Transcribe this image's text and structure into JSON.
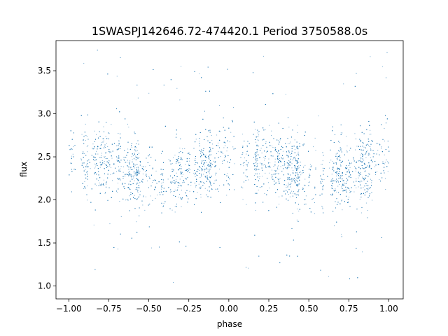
{
  "chart_data": {
    "type": "scatter",
    "title": "1SWASPJ142646.72-474420.1 Period 3750588.0s",
    "xlabel": "phase",
    "ylabel": "flux",
    "xlim": [
      -1.08,
      1.09
    ],
    "ylim": [
      0.85,
      3.85
    ],
    "x_ticks": [
      -1.0,
      -0.75,
      -0.5,
      -0.25,
      0.0,
      0.25,
      0.5,
      0.75,
      1.0
    ],
    "x_tick_labels": [
      "−1.00",
      "−0.75",
      "−0.50",
      "−0.25",
      "0.00",
      "0.25",
      "0.50",
      "0.75",
      "1.00"
    ],
    "y_ticks": [
      1.0,
      1.5,
      2.0,
      2.5,
      3.0,
      3.5
    ],
    "y_tick_labels": [
      "1.0",
      "1.5",
      "2.0",
      "2.5",
      "3.0",
      "3.5"
    ],
    "grid": false,
    "marker_color": "#1f77b4",
    "phase_folded": true,
    "profile_phase": [
      0.0,
      0.1,
      0.2,
      0.3,
      0.4,
      0.5,
      0.6,
      0.7,
      0.8,
      0.9
    ],
    "profile_median_flux": [
      2.5,
      2.45,
      2.45,
      2.4,
      2.3,
      2.28,
      2.2,
      2.3,
      2.35,
      2.45
    ],
    "flux_spread_core": [
      2.0,
      3.0
    ],
    "flux_outlier_range": [
      1.0,
      3.8
    ]
  }
}
